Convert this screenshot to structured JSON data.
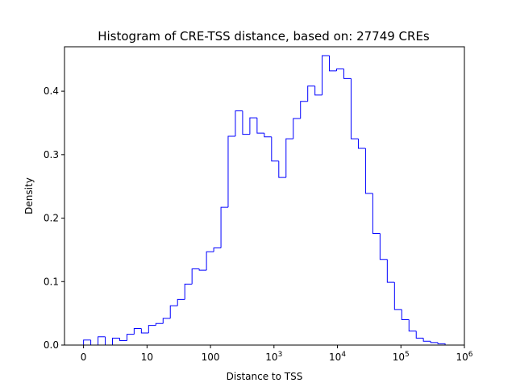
{
  "chart_data": {
    "type": "histogram",
    "title": "Histogram of CRE-TSS distance, based on: 27749 CREs",
    "xlabel": "Distance to TSS",
    "ylabel": "Density",
    "ylim": [
      0,
      0.47
    ],
    "xlim": [
      -0.3,
      6.0
    ],
    "x_tick_values": [
      0,
      1,
      2,
      3,
      4,
      5,
      6
    ],
    "x_tick_labels": [
      {
        "base": "0",
        "sup": ""
      },
      {
        "base": "10",
        "sup": ""
      },
      {
        "base": "100",
        "sup": ""
      },
      {
        "base": "10",
        "sup": "3"
      },
      {
        "base": "10",
        "sup": "4"
      },
      {
        "base": "10",
        "sup": "5"
      },
      {
        "base": "10",
        "sup": "6"
      }
    ],
    "y_ticks": [
      0.0,
      0.1,
      0.2,
      0.3,
      0.4
    ],
    "y_tick_labels": [
      "0.0",
      "0.1",
      "0.2",
      "0.3",
      "0.4"
    ],
    "grid": false,
    "line_color": "#0000ff",
    "bin_edges": [
      0,
      0.114,
      0.228,
      0.342,
      0.456,
      0.57,
      0.684,
      0.797,
      0.911,
      1.025,
      1.139,
      1.253,
      1.367,
      1.481,
      1.595,
      1.709,
      1.823,
      1.937,
      2.051,
      2.165,
      2.278,
      2.392,
      2.506,
      2.62,
      2.734,
      2.848,
      2.962,
      3.076,
      3.19,
      3.304,
      3.418,
      3.532,
      3.646,
      3.759,
      3.873,
      3.987,
      4.101,
      4.215,
      4.329,
      4.443,
      4.557,
      4.671,
      4.785,
      4.899,
      5.013,
      5.127,
      5.241,
      5.354,
      5.468,
      5.582
    ],
    "densities": [
      0.008,
      0.0,
      0.013,
      0.0,
      0.011,
      0.007,
      0.017,
      0.026,
      0.019,
      0.031,
      0.034,
      0.042,
      0.062,
      0.072,
      0.096,
      0.12,
      0.118,
      0.147,
      0.153,
      0.217,
      0.329,
      0.369,
      0.332,
      0.358,
      0.334,
      0.328,
      0.29,
      0.264,
      0.325,
      0.357,
      0.384,
      0.408,
      0.394,
      0.456,
      0.432,
      0.435,
      0.42,
      0.325,
      0.31,
      0.239,
      0.176,
      0.135,
      0.099,
      0.056,
      0.04,
      0.022,
      0.011,
      0.006,
      0.004,
      0.002
    ]
  }
}
